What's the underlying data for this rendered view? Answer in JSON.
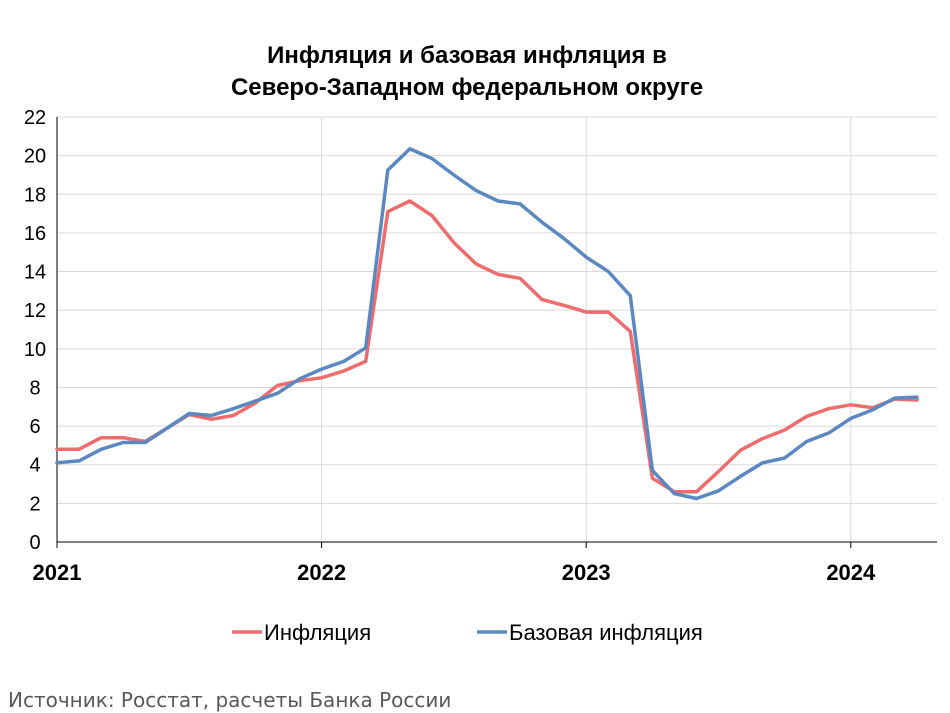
{
  "chart_data": {
    "type": "line",
    "title_lines": [
      "Инфляция и базовая инфляция в",
      "Северо-Западном федеральном округе"
    ],
    "xlabel": "",
    "ylabel": "",
    "ylim": [
      0,
      22
    ],
    "y_ticks": [
      "0",
      "2",
      "4",
      "6",
      "8",
      "10",
      "12",
      "14",
      "16",
      "18",
      "20",
      "22"
    ],
    "x_ticks": [
      "2021",
      "2022",
      "2023",
      "2024"
    ],
    "x_tick_month_index": [
      0,
      12,
      24,
      36
    ],
    "grid": true,
    "legend_position": "bottom",
    "series": [
      {
        "name": "Инфляция",
        "color": "#ee6b6e",
        "values": [
          4.8,
          4.8,
          5.4,
          5.4,
          5.2,
          5.9,
          6.6,
          6.35,
          6.55,
          7.2,
          8.1,
          8.35,
          8.5,
          8.85,
          9.35,
          17.1,
          17.65,
          16.9,
          15.5,
          14.4,
          13.85,
          13.65,
          12.55,
          12.25,
          11.9,
          11.9,
          10.9,
          3.3,
          2.6,
          2.6,
          3.65,
          4.75,
          5.35,
          5.8,
          6.5,
          6.9,
          7.1,
          6.95,
          7.4,
          7.35
        ]
      },
      {
        "name": "Базовая инфляция",
        "color": "#5b88c0",
        "values": [
          4.1,
          4.2,
          4.8,
          5.15,
          5.15,
          5.9,
          6.65,
          6.55,
          6.9,
          7.3,
          7.7,
          8.45,
          8.95,
          9.35,
          10.05,
          19.25,
          20.35,
          19.85,
          19.0,
          18.2,
          17.65,
          17.5,
          16.55,
          15.7,
          14.75,
          14.0,
          12.75,
          3.7,
          2.5,
          2.25,
          2.65,
          3.4,
          4.1,
          4.35,
          5.2,
          5.65,
          6.4,
          6.85,
          7.45,
          7.5
        ]
      }
    ]
  },
  "footer": {
    "source": "Источник: Росстат, расчеты Банка России"
  }
}
